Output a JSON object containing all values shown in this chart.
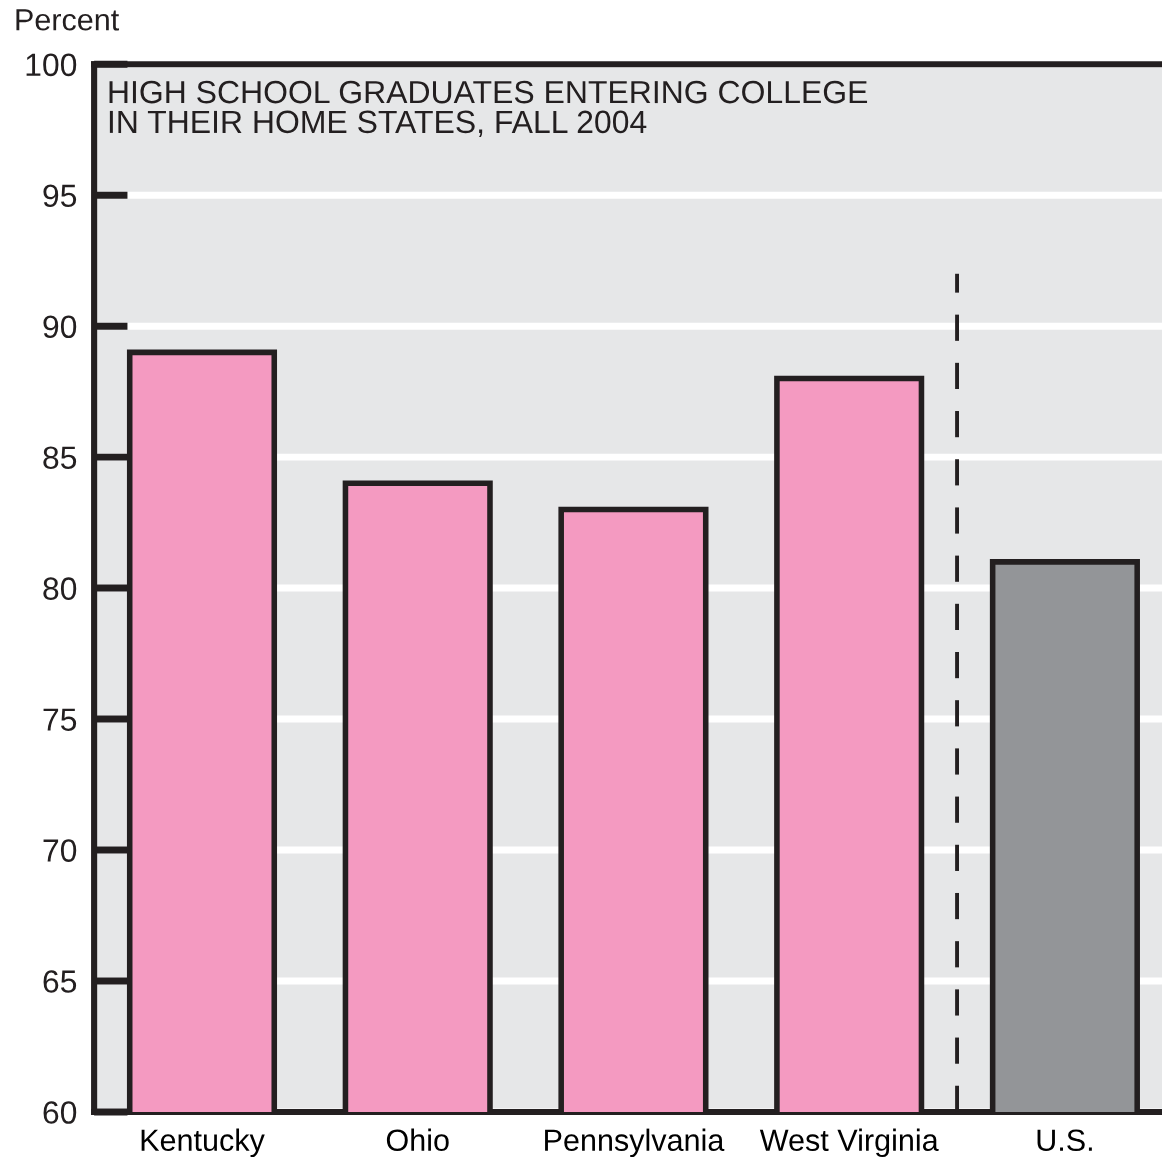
{
  "chart_data": {
    "type": "bar",
    "title": "HIGH SCHOOL GRADUATES ENTERING COLLEGE\nIN THEIR HOME STATES, FALL 2004",
    "ylabel": "Percent",
    "categories": [
      "Kentucky",
      "Ohio",
      "Pennsylvania",
      "West Virginia",
      "U.S."
    ],
    "values": [
      89,
      84,
      83,
      88,
      81
    ],
    "colors": [
      "#f49ac1",
      "#f49ac1",
      "#f49ac1",
      "#f49ac1",
      "#939598"
    ],
    "ylim": [
      60,
      100
    ],
    "yticks": [
      60,
      65,
      70,
      75,
      80,
      85,
      90,
      95,
      100
    ],
    "grid": "y"
  }
}
